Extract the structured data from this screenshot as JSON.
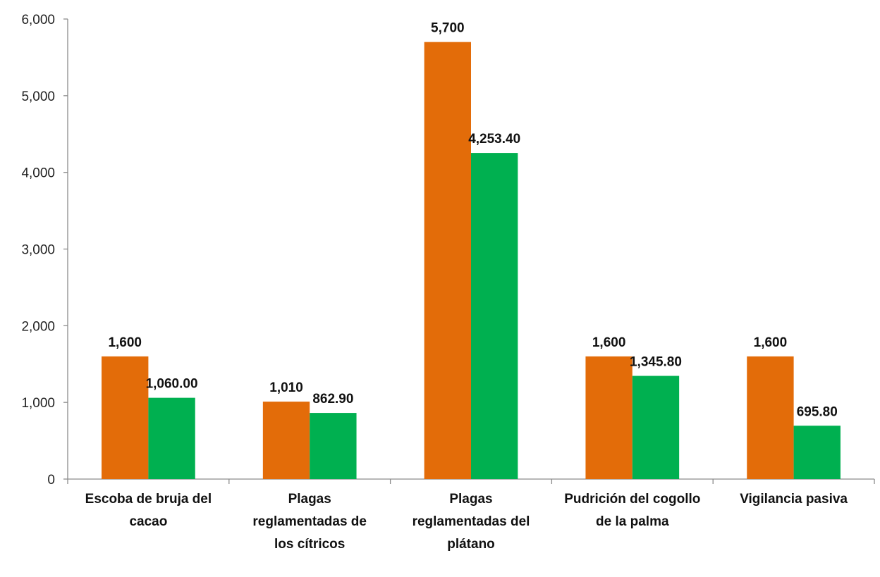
{
  "chart_data": {
    "type": "bar",
    "title": "",
    "xlabel": "",
    "ylabel": "",
    "ylim": [
      0,
      6000
    ],
    "y_ticks": [
      "0",
      "1,000",
      "2,000",
      "3,000",
      "4,000",
      "5,000",
      "6,000"
    ],
    "grid": false,
    "legend": "none",
    "categories": [
      [
        "Escoba de bruja del",
        "cacao"
      ],
      [
        "Plagas",
        "reglamentadas de",
        "los cítricos"
      ],
      [
        "Plagas",
        "reglamentadas del",
        "plátano"
      ],
      [
        "Pudrición del cogollo",
        "de la palma"
      ],
      [
        "Vigilancia pasiva"
      ]
    ],
    "series": [
      {
        "color": "#E36C09",
        "values": [
          1600,
          1010,
          5700,
          1600,
          1600
        ],
        "labels": [
          "1,600",
          "1,010",
          "5,700",
          "1,600",
          "1,600"
        ]
      },
      {
        "color": "#00B050",
        "values": [
          1060.0,
          862.9,
          4253.4,
          1345.8,
          695.8
        ],
        "labels": [
          "1,060.00",
          "862.90",
          "4,253.40",
          "1,345.80",
          "695.80"
        ]
      }
    ]
  }
}
